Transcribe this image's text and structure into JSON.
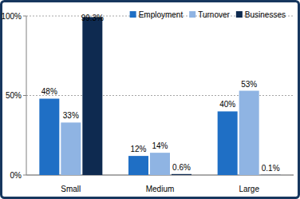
{
  "chart_data": {
    "type": "bar",
    "categories": [
      "Small",
      "Medium",
      "Large"
    ],
    "series": [
      {
        "name": "Employment",
        "color": "#1f6fc5",
        "values": [
          48,
          12,
          40
        ],
        "value_labels": [
          "48%",
          "12%",
          "40%"
        ]
      },
      {
        "name": "Turnover",
        "color": "#8fb4e3",
        "values": [
          33,
          14,
          53
        ],
        "value_labels": [
          "33%",
          "14%",
          "53%"
        ]
      },
      {
        "name": "Businesses",
        "color": "#0e2a50",
        "values": [
          99.3,
          0.6,
          0.1
        ],
        "value_labels": [
          "99.3%",
          "0.6%",
          "0.1%"
        ]
      }
    ],
    "ylim": [
      0,
      100
    ],
    "yticks": [
      {
        "value": 0,
        "label": "0%"
      },
      {
        "value": 50,
        "label": "50%"
      },
      {
        "value": 100,
        "label": "100%"
      }
    ],
    "grid": true,
    "legend": "top-right",
    "data_labels": true
  }
}
